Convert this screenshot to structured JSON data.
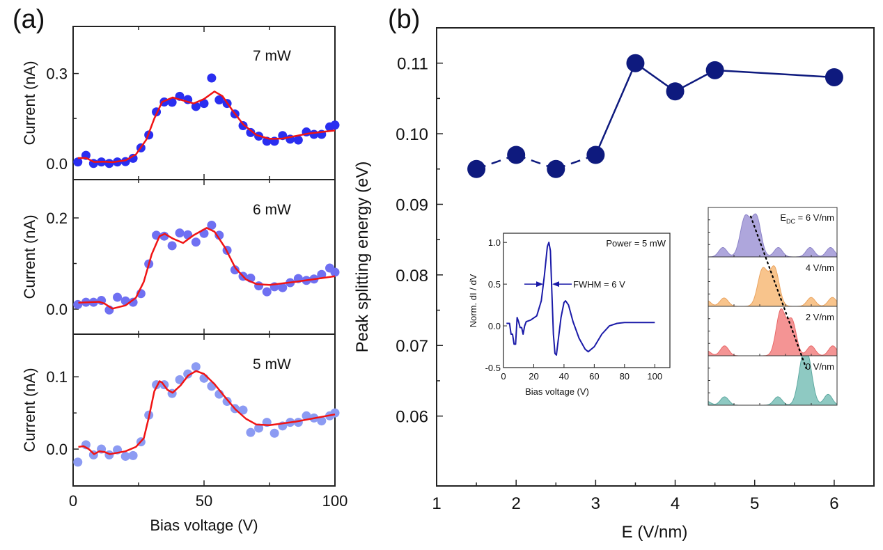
{
  "panel_labels": {
    "a": "(a)",
    "b": "(b)"
  },
  "colors": {
    "fit": "#f01414",
    "p7": "#2a2ef0",
    "p6": "#6f70f2",
    "p5": "#8c9bf3",
    "navy": "#0e1a7e",
    "inset_line": "#1a1aa8",
    "spec_6": "#aea6dc",
    "spec_4": "#f8c48c",
    "spec_2": "#f49494",
    "spec_0": "#8ec9c2"
  },
  "chart_data": [
    {
      "type": "scatter",
      "panel": "a",
      "xlabel": "Bias voltage (V)",
      "xlim": [
        0,
        100
      ],
      "xticks": [
        0,
        50,
        100
      ],
      "x": [
        1.8,
        4.9,
        7.8,
        10.8,
        13.8,
        16.9,
        20,
        22.9,
        25.9,
        28.9,
        31.8,
        34.8,
        37.8,
        40.7,
        43.8,
        46.9,
        50,
        52.9,
        55.8,
        58.8,
        61.8,
        64.9,
        67.8,
        70.9,
        74,
        76.9,
        80,
        82.9,
        86,
        89.1,
        92,
        94.9,
        98,
        100
      ],
      "subplots": [
        {
          "label": "7 mW",
          "ylabel": "Current (nA)",
          "ylim": [
            -0.054,
            0.457
          ],
          "yticks": [
            "0.0",
            "0.3"
          ],
          "ytick_values": [
            0,
            0.3
          ],
          "color_key": "p7",
          "y": [
            0.005,
            0.027,
            0.0,
            0.005,
            0.0,
            0.005,
            0.006,
            0.017,
            0.052,
            0.095,
            0.172,
            0.205,
            0.204,
            0.224,
            0.213,
            0.19,
            0.2,
            0.285,
            0.212,
            0.2,
            0.165,
            0.126,
            0.103,
            0.091,
            0.074,
            0.074,
            0.093,
            0.081,
            0.078,
            0.105,
            0.097,
            0.097,
            0.122,
            0.128
          ],
          "fit": {
            "x": [
              1.8,
              5,
              8,
              12,
              15,
              20,
              24,
              28,
              31,
              34,
              38,
              42,
              46,
              50,
              54,
              57,
              61,
              65,
              70,
              75,
              80,
              90,
              100
            ],
            "y": [
              0.018,
              0.018,
              0.005,
              0.006,
              0.004,
              0.01,
              0.03,
              0.08,
              0.15,
              0.205,
              0.22,
              0.21,
              0.2,
              0.215,
              0.24,
              0.225,
              0.175,
              0.13,
              0.095,
              0.082,
              0.083,
              0.1,
              0.11
            ]
          }
        },
        {
          "label": "6 mW",
          "ylabel": "Current (nA)",
          "ylim": [
            -0.055,
            0.284
          ],
          "yticks": [
            "0.0",
            "0.2"
          ],
          "ytick_values": [
            0,
            0.2
          ],
          "color_key": "p6",
          "y": [
            0.01,
            0.015,
            0.015,
            0.019,
            -0.002,
            0.026,
            0.018,
            0.015,
            0.034,
            0.099,
            0.162,
            0.16,
            0.139,
            0.167,
            0.163,
            0.147,
            0.166,
            0.184,
            0.162,
            0.129,
            0.086,
            0.072,
            0.068,
            0.051,
            0.038,
            0.049,
            0.047,
            0.058,
            0.067,
            0.063,
            0.066,
            0.076,
            0.09,
            0.081
          ],
          "fit": {
            "x": [
              2,
              10,
              12,
              15,
              20,
              24,
              27,
              30,
              33,
              35,
              38,
              42,
              46,
              51,
              54,
              58,
              62,
              66,
              70,
              75,
              85,
              100
            ],
            "y": [
              0.014,
              0.016,
              0.012,
              0.001,
              0.008,
              0.025,
              0.06,
              0.12,
              0.16,
              0.165,
              0.155,
              0.145,
              0.162,
              0.178,
              0.17,
              0.135,
              0.09,
              0.065,
              0.055,
              0.053,
              0.06,
              0.072
            ]
          }
        },
        {
          "label": "5 mW",
          "ylabel": "Current (nA)",
          "ylim": [
            -0.051,
            0.159
          ],
          "yticks": [
            "0.0",
            "0.1"
          ],
          "ytick_values": [
            0,
            0.1
          ],
          "color_key": "p5",
          "y": [
            -0.018,
            0.006,
            -0.008,
            0.0,
            -0.008,
            -0.001,
            -0.01,
            -0.009,
            0.01,
            0.047,
            0.089,
            0.089,
            0.077,
            0.096,
            0.104,
            0.114,
            0.098,
            0.087,
            0.076,
            0.066,
            0.056,
            0.054,
            0.023,
            0.029,
            0.037,
            0.022,
            0.032,
            0.037,
            0.037,
            0.046,
            0.043,
            0.039,
            0.046,
            0.05
          ],
          "fit": {
            "x": [
              2,
              4,
              6,
              8,
              10,
              12,
              14,
              20,
              24,
              27,
              29,
              31,
              33,
              34,
              36,
              38,
              41,
              44,
              47,
              50,
              54,
              58,
              62,
              66,
              70,
              75,
              85,
              100
            ],
            "y": [
              0.003,
              0.004,
              0.0,
              -0.007,
              -0.003,
              -0.004,
              -0.007,
              -0.003,
              0.003,
              0.015,
              0.045,
              0.08,
              0.094,
              0.092,
              0.082,
              0.078,
              0.088,
              0.102,
              0.108,
              0.104,
              0.09,
              0.072,
              0.055,
              0.042,
              0.034,
              0.033,
              0.038,
              0.048
            ]
          }
        }
      ]
    },
    {
      "type": "line",
      "panel": "b",
      "xlabel": "E (V/nm)",
      "ylabel": "Peak splitting energy (eV)",
      "xlim": [
        1,
        6.5
      ],
      "ylim": [
        0.0501,
        0.115
      ],
      "xticks": [
        "1",
        "2",
        "3",
        "4",
        "5",
        "6"
      ],
      "xtick_values": [
        1,
        2,
        3,
        4,
        5,
        6
      ],
      "yticks": [
        "0.06",
        "0.07",
        "0.08",
        "0.09",
        "0.10",
        "0.11"
      ],
      "ytick_values": [
        0.06,
        0.07,
        0.08,
        0.09,
        0.1,
        0.11
      ],
      "x": [
        1.5,
        2,
        2.5,
        3,
        3.5,
        4,
        4.5,
        6
      ],
      "y": [
        0.095,
        0.097,
        0.095,
        0.097,
        0.11,
        0.106,
        0.109,
        0.108
      ],
      "dashed_until_x": 3
    },
    {
      "type": "line",
      "panel": "b-inset-left",
      "annotation": "Power = 5 mW",
      "fwhm_label": "FWHM = 6 V",
      "fwhm_level": 0.5,
      "xlabel": "Bias voltage (V)",
      "ylabel": "Norm. dI / dV",
      "xlim": [
        0,
        110
      ],
      "ylim": [
        -0.5,
        1.11
      ],
      "xticks": [
        "0",
        "20",
        "40",
        "60",
        "80",
        "100"
      ],
      "xtick_values": [
        0,
        20,
        40,
        60,
        80,
        100
      ],
      "yticks": [
        "-0.5",
        "0.0",
        "0.5",
        "1.0"
      ],
      "ytick_values": [
        -0.5,
        0,
        0.5,
        1.0
      ],
      "x": [
        2,
        4,
        5,
        6,
        7,
        8,
        9,
        10,
        11,
        12,
        13,
        14,
        15,
        18,
        22,
        25,
        27,
        29,
        30,
        31,
        32,
        33,
        34,
        35,
        36,
        38,
        40,
        41,
        43,
        46,
        50,
        54,
        56,
        60,
        65,
        70,
        75,
        80,
        100
      ],
      "y": [
        0.03,
        0.03,
        -0.1,
        -0.1,
        -0.22,
        -0.22,
        0.1,
        0.05,
        -0.02,
        -0.02,
        -0.1,
        0.0,
        0.05,
        0.07,
        0.12,
        0.3,
        0.6,
        0.95,
        1.0,
        0.9,
        0.4,
        -0.1,
        -0.33,
        -0.35,
        -0.2,
        0.1,
        0.28,
        0.3,
        0.25,
        0.05,
        -0.15,
        -0.28,
        -0.31,
        -0.25,
        -0.1,
        0.0,
        0.03,
        0.04,
        0.04
      ]
    },
    {
      "type": "area",
      "panel": "b-inset-right",
      "xlim": [
        0,
        10
      ],
      "traces": [
        {
          "label_main": "E",
          "label_sub": "DC",
          "label_rest": " = 6 V/nm",
          "color_key": "spec_6",
          "peaks": [
            [
              1.14,
              0.19,
              0.32
            ],
            [
              2.87,
              0.8,
              0.38
            ],
            [
              3.74,
              0.8,
              0.36
            ],
            [
              5.44,
              0.19,
              0.32
            ],
            [
              7.91,
              0.19,
              0.32
            ],
            [
              9.49,
              0.19,
              0.32
            ]
          ]
        },
        {
          "label": "4 V/nm",
          "color_key": "spec_4",
          "peaks": [
            [
              -0.1,
              0.12,
              0.3
            ],
            [
              1.23,
              0.17,
              0.32
            ],
            [
              4.23,
              0.75,
              0.38
            ],
            [
              5.14,
              0.77,
              0.36
            ],
            [
              7.99,
              0.18,
              0.32
            ],
            [
              9.64,
              0.18,
              0.32
            ]
          ]
        },
        {
          "label": "2 V/nm",
          "color_key": "spec_2",
          "peaks": [
            [
              -0.1,
              0.1,
              0.3
            ],
            [
              1.27,
              0.2,
              0.32
            ],
            [
              5.64,
              0.92,
              0.36
            ],
            [
              6.5,
              0.7,
              0.34
            ],
            [
              7.99,
              0.2,
              0.32
            ],
            [
              9.67,
              0.2,
              0.32
            ]
          ]
        },
        {
          "label": "0 V/nm",
          "color_key": "spec_0",
          "peaks": [
            [
              -0.1,
              0.08,
              0.3
            ],
            [
              1.27,
              0.17,
              0.32
            ],
            [
              5.41,
              0.17,
              0.32
            ],
            [
              7.31,
              0.72,
              0.36
            ],
            [
              7.77,
              0.73,
              0.36
            ],
            [
              9.31,
              0.22,
              0.32
            ]
          ]
        }
      ],
      "trend_line": {
        "from": [
          3.3,
          0.82
        ],
        "to": [
          7.6,
          0.75
        ]
      }
    }
  ]
}
